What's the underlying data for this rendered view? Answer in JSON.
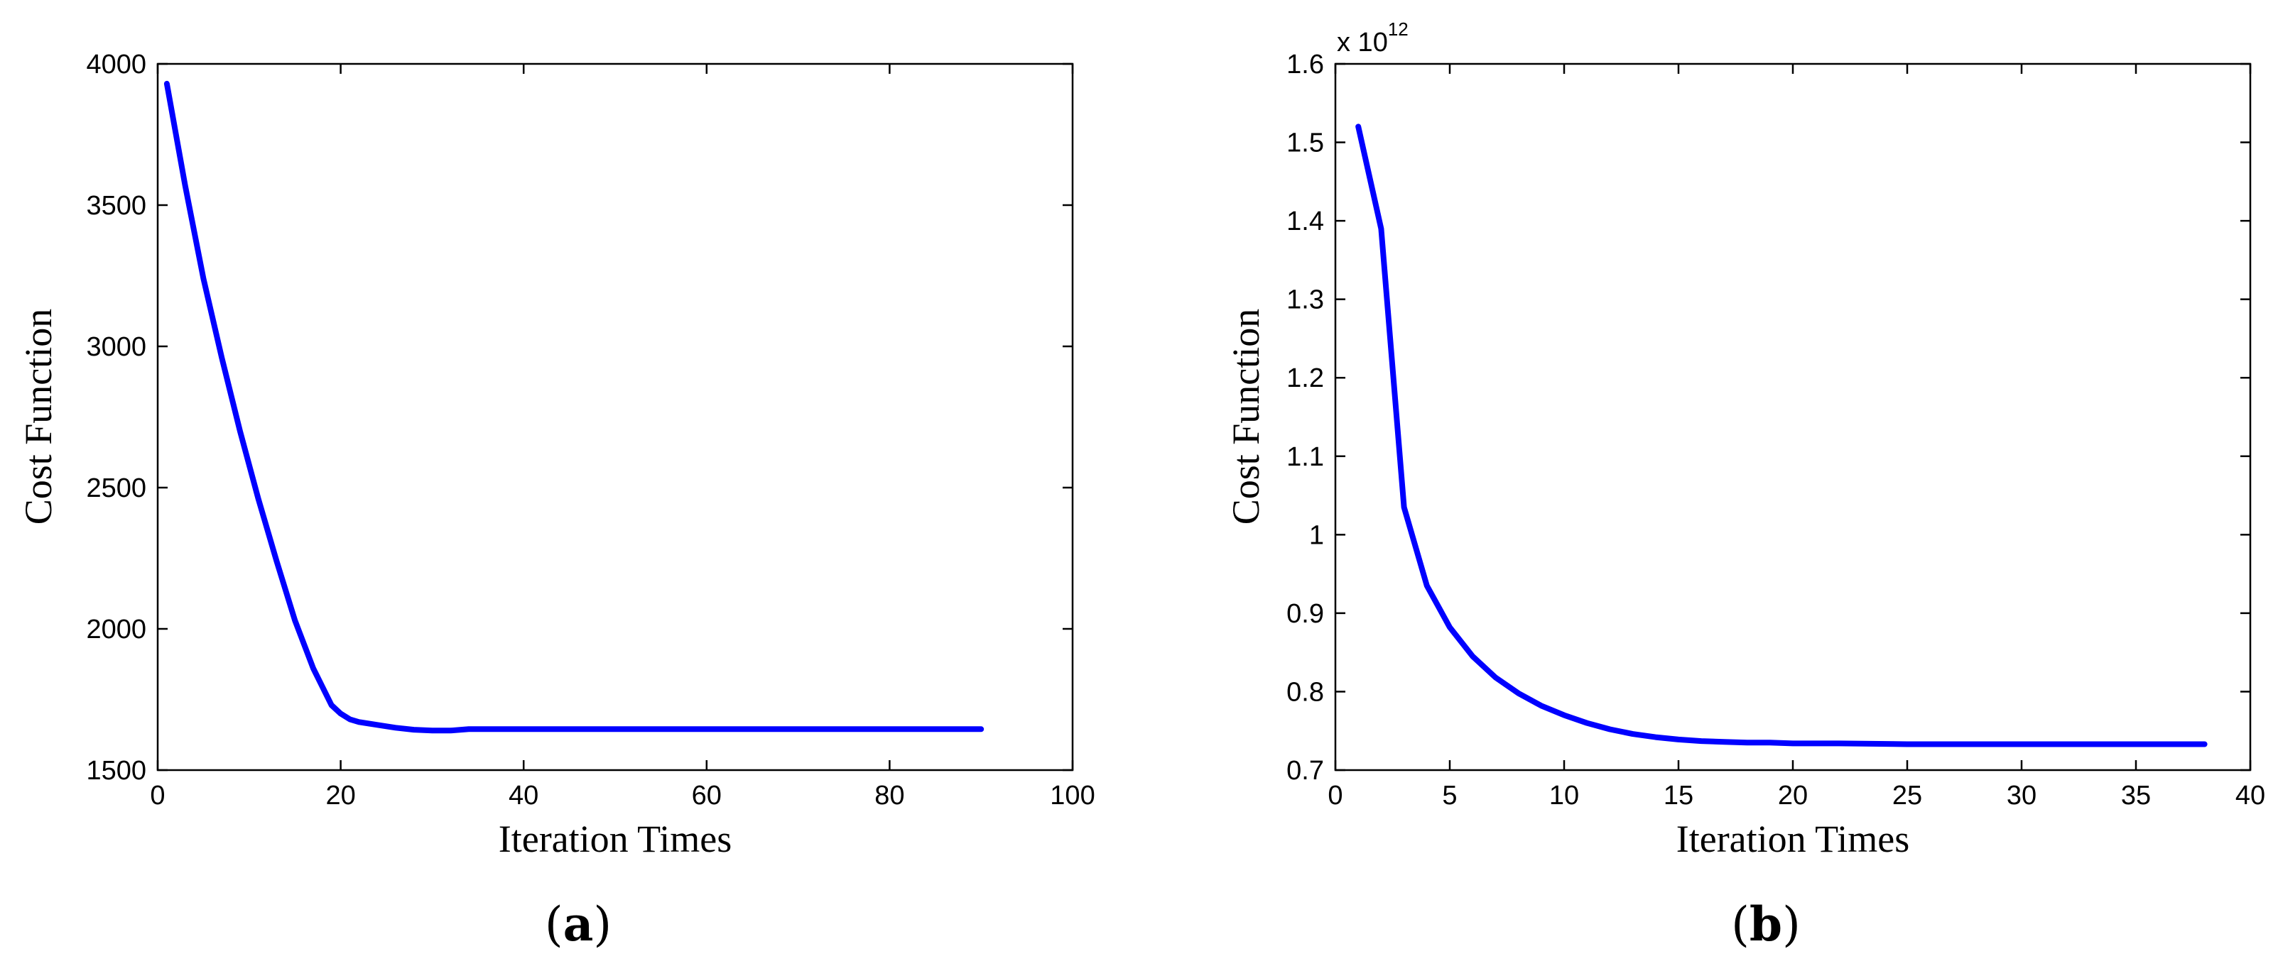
{
  "chart_data": [
    {
      "type": "line",
      "panel_label": "a",
      "xlabel": "Iteration Times",
      "ylabel": "Cost Function",
      "xlim": [
        0,
        100
      ],
      "ylim": [
        1500,
        4000
      ],
      "xticks": [
        0,
        20,
        40,
        60,
        80,
        100
      ],
      "yticks": [
        1500,
        2000,
        2500,
        3000,
        3500,
        4000
      ],
      "xtick_labels": [
        "0",
        "20",
        "40",
        "60",
        "80",
        "100"
      ],
      "ytick_labels": [
        "1500",
        "2000",
        "2500",
        "3000",
        "3500",
        "4000"
      ],
      "grid": false,
      "series": [
        {
          "color": "#0000ff",
          "x": [
            1,
            3,
            5,
            7,
            9,
            11,
            13,
            15,
            17,
            19,
            20,
            21,
            22,
            24,
            26,
            28,
            30,
            32,
            34,
            40,
            50,
            60,
            70,
            80,
            90
          ],
          "y": [
            3930,
            3570,
            3240,
            2960,
            2700,
            2460,
            2240,
            2030,
            1860,
            1730,
            1700,
            1680,
            1670,
            1660,
            1650,
            1643,
            1640,
            1640,
            1645,
            1645,
            1645,
            1645,
            1645,
            1645,
            1645
          ]
        }
      ]
    },
    {
      "type": "line",
      "panel_label": "b",
      "xlabel": "Iteration Times",
      "ylabel": "Cost Function",
      "y_exponent_base": "x 10",
      "y_exponent_power": "12",
      "xlim": [
        0,
        40
      ],
      "ylim": [
        0.7,
        1.6
      ],
      "xticks": [
        0,
        5,
        10,
        15,
        20,
        25,
        30,
        35,
        40
      ],
      "yticks": [
        0.7,
        0.8,
        0.9,
        1.0,
        1.1,
        1.2,
        1.3,
        1.4,
        1.5,
        1.6
      ],
      "xtick_labels": [
        "0",
        "5",
        "10",
        "15",
        "20",
        "25",
        "30",
        "35",
        "40"
      ],
      "ytick_labels": [
        "0.7",
        "0.8",
        "0.9",
        "1",
        "1.1",
        "1.2",
        "1.3",
        "1.4",
        "1.5",
        "1.6"
      ],
      "grid": false,
      "series": [
        {
          "color": "#0000ff",
          "x": [
            1,
            2,
            3,
            4,
            5,
            6,
            7,
            8,
            9,
            10,
            11,
            12,
            13,
            14,
            15,
            16,
            17,
            18,
            19,
            20,
            22,
            25,
            30,
            35,
            38
          ],
          "y": [
            1.52,
            1.39,
            1.035,
            0.935,
            0.882,
            0.845,
            0.818,
            0.798,
            0.782,
            0.77,
            0.76,
            0.752,
            0.746,
            0.742,
            0.739,
            0.737,
            0.736,
            0.735,
            0.735,
            0.734,
            0.734,
            0.733,
            0.733,
            0.733,
            0.733
          ]
        }
      ]
    }
  ]
}
